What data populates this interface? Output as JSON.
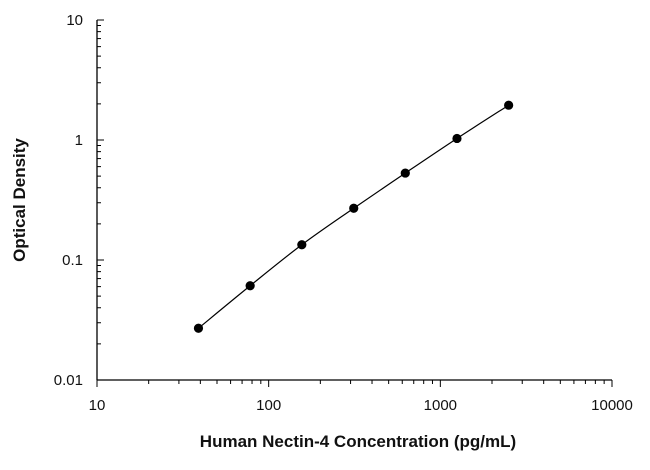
{
  "chart_data": {
    "type": "scatter",
    "title": "",
    "xlabel": "Human Nectin-4 Concentration (pg/mL)",
    "ylabel": "Optical Density",
    "x_scale": "log",
    "y_scale": "log",
    "xlim": [
      10,
      10000
    ],
    "ylim": [
      0.01,
      10
    ],
    "x_tick_labels": [
      "10",
      "100",
      "1000",
      "10000"
    ],
    "y_tick_labels": [
      "0.01",
      "0.1",
      "1",
      "10"
    ],
    "grid": false,
    "legend": "none",
    "series": [
      {
        "x": [
          39,
          78,
          156,
          313,
          625,
          1250,
          2500
        ],
        "y": [
          0.027,
          0.061,
          0.134,
          0.27,
          0.53,
          1.03,
          1.95
        ],
        "marker": "circle",
        "color": "#000000",
        "fit_curve": true
      }
    ]
  }
}
